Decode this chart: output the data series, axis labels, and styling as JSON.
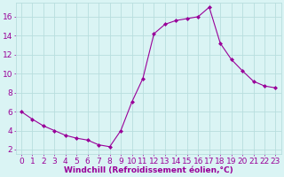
{
  "x": [
    0,
    1,
    2,
    3,
    4,
    5,
    6,
    7,
    8,
    9,
    10,
    11,
    12,
    13,
    14,
    15,
    16,
    17,
    18,
    19,
    20,
    21,
    22,
    23
  ],
  "y": [
    6.0,
    5.2,
    4.5,
    4.0,
    3.5,
    3.2,
    3.0,
    2.5,
    2.3,
    4.0,
    7.0,
    9.5,
    14.2,
    15.2,
    15.6,
    15.8,
    16.0,
    17.0,
    13.2,
    11.5,
    10.3,
    9.2,
    8.7,
    8.5
  ],
  "line_color": "#990099",
  "marker": "D",
  "marker_size": 2,
  "background_color": "#daf4f4",
  "grid_color": "#b8dede",
  "xlabel": "Windchill (Refroidissement éolien,°C)",
  "xlabel_fontsize": 6.5,
  "ylabel_ticks": [
    2,
    4,
    6,
    8,
    10,
    12,
    14,
    16
  ],
  "xlim": [
    -0.5,
    23.5
  ],
  "ylim": [
    1.5,
    17.5
  ],
  "tick_fontsize": 6.5,
  "tick_color": "#990099",
  "label_color": "#990099"
}
